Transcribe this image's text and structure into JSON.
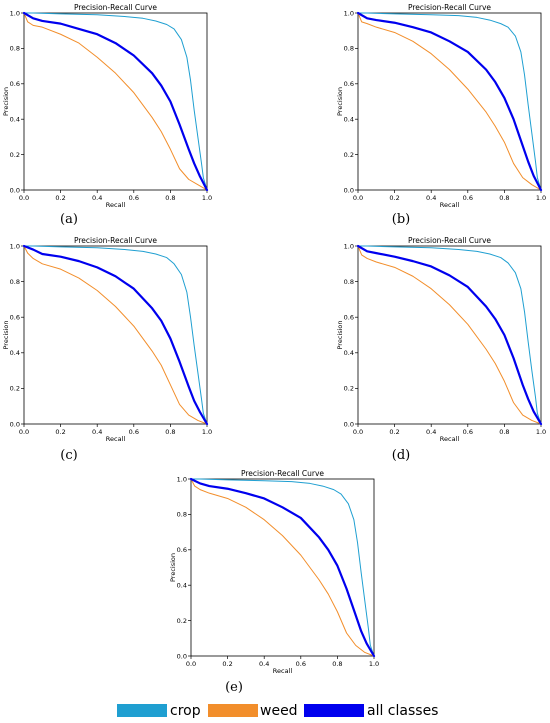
{
  "chart_data": [
    {
      "type": "line",
      "caption": "(a)",
      "title": "Precision-Recall Curve",
      "xlabel": "Recall",
      "ylabel": "Precision",
      "xlim": [
        0,
        1
      ],
      "ylim": [
        0,
        1
      ],
      "xticks": [
        "0.0",
        "0.2",
        "0.4",
        "0.6",
        "0.8",
        "1.0"
      ],
      "yticks": [
        "0.0",
        "0.2",
        "0.4",
        "0.6",
        "0.8",
        "1.0"
      ],
      "series": [
        {
          "name": "crop",
          "color": "#1f9fd1",
          "width": 1,
          "x": [
            0,
            0.05,
            0.2,
            0.4,
            0.55,
            0.65,
            0.72,
            0.78,
            0.82,
            0.86,
            0.89,
            0.91,
            0.93,
            0.95,
            0.97,
            0.98,
            1.0
          ],
          "y": [
            1.0,
            1.0,
            0.995,
            0.99,
            0.98,
            0.97,
            0.955,
            0.935,
            0.91,
            0.85,
            0.75,
            0.62,
            0.45,
            0.3,
            0.15,
            0.07,
            0.0
          ]
        },
        {
          "name": "weed",
          "color": "#f28e2b",
          "width": 1,
          "x": [
            0,
            0.02,
            0.05,
            0.1,
            0.2,
            0.3,
            0.4,
            0.5,
            0.6,
            0.7,
            0.75,
            0.8,
            0.85,
            0.9,
            0.95,
            1.0
          ],
          "y": [
            1.0,
            0.95,
            0.93,
            0.92,
            0.88,
            0.83,
            0.75,
            0.66,
            0.55,
            0.41,
            0.33,
            0.23,
            0.12,
            0.06,
            0.03,
            0.0
          ]
        },
        {
          "name": "all classes",
          "color": "#0000ee",
          "width": 2.2,
          "x": [
            0,
            0.05,
            0.1,
            0.2,
            0.3,
            0.4,
            0.5,
            0.6,
            0.7,
            0.75,
            0.8,
            0.85,
            0.9,
            0.93,
            0.96,
            1.0
          ],
          "y": [
            1.0,
            0.97,
            0.955,
            0.94,
            0.91,
            0.88,
            0.83,
            0.76,
            0.66,
            0.59,
            0.5,
            0.37,
            0.23,
            0.15,
            0.08,
            0.0
          ]
        }
      ]
    },
    {
      "type": "line",
      "caption": "(b)",
      "title": "Precision-Recall Curve",
      "xlabel": "Recall",
      "ylabel": "Precision",
      "xlim": [
        0,
        1
      ],
      "ylim": [
        0,
        1
      ],
      "xticks": [
        "0.0",
        "0.2",
        "0.4",
        "0.6",
        "0.8",
        "1.0"
      ],
      "yticks": [
        "0.0",
        "0.2",
        "0.4",
        "0.6",
        "0.8",
        "1.0"
      ],
      "series": [
        {
          "name": "crop",
          "color": "#1f9fd1",
          "width": 1,
          "x": [
            0,
            0.05,
            0.2,
            0.4,
            0.55,
            0.65,
            0.72,
            0.78,
            0.82,
            0.86,
            0.89,
            0.91,
            0.93,
            0.95,
            0.97,
            0.98,
            1.0
          ],
          "y": [
            1.0,
            1.0,
            0.995,
            0.99,
            0.985,
            0.975,
            0.96,
            0.94,
            0.92,
            0.87,
            0.78,
            0.65,
            0.48,
            0.32,
            0.16,
            0.07,
            0.0
          ]
        },
        {
          "name": "weed",
          "color": "#f28e2b",
          "width": 1,
          "x": [
            0,
            0.02,
            0.05,
            0.1,
            0.2,
            0.3,
            0.4,
            0.5,
            0.6,
            0.7,
            0.75,
            0.8,
            0.85,
            0.9,
            0.95,
            1.0
          ],
          "y": [
            1.0,
            0.95,
            0.94,
            0.92,
            0.89,
            0.84,
            0.77,
            0.68,
            0.57,
            0.44,
            0.36,
            0.27,
            0.15,
            0.07,
            0.03,
            0.0
          ]
        },
        {
          "name": "all classes",
          "color": "#0000ee",
          "width": 2.2,
          "x": [
            0,
            0.05,
            0.1,
            0.2,
            0.3,
            0.4,
            0.5,
            0.6,
            0.7,
            0.75,
            0.8,
            0.85,
            0.9,
            0.93,
            0.96,
            1.0
          ],
          "y": [
            1.0,
            0.97,
            0.96,
            0.945,
            0.92,
            0.89,
            0.84,
            0.78,
            0.68,
            0.61,
            0.52,
            0.4,
            0.25,
            0.16,
            0.08,
            0.0
          ]
        }
      ]
    },
    {
      "type": "line",
      "caption": "(c)",
      "title": "Precision-Recall Curve",
      "xlabel": "Recall",
      "ylabel": "Precision",
      "xlim": [
        0,
        1
      ],
      "ylim": [
        0,
        1
      ],
      "xticks": [
        "0.0",
        "0.2",
        "0.4",
        "0.6",
        "0.8",
        "1.0"
      ],
      "yticks": [
        "0.0",
        "0.2",
        "0.4",
        "0.6",
        "0.8",
        "1.0"
      ],
      "series": [
        {
          "name": "crop",
          "color": "#1f9fd1",
          "width": 1,
          "x": [
            0,
            0.05,
            0.2,
            0.4,
            0.55,
            0.65,
            0.72,
            0.78,
            0.82,
            0.86,
            0.89,
            0.91,
            0.93,
            0.95,
            0.97,
            0.98,
            1.0
          ],
          "y": [
            1.0,
            1.0,
            0.995,
            0.99,
            0.98,
            0.97,
            0.955,
            0.935,
            0.9,
            0.84,
            0.74,
            0.6,
            0.44,
            0.29,
            0.14,
            0.06,
            0.0
          ]
        },
        {
          "name": "weed",
          "color": "#f28e2b",
          "width": 1,
          "x": [
            0,
            0.02,
            0.05,
            0.1,
            0.2,
            0.3,
            0.4,
            0.5,
            0.6,
            0.7,
            0.75,
            0.8,
            0.85,
            0.9,
            0.95,
            1.0
          ],
          "y": [
            1.0,
            0.96,
            0.93,
            0.9,
            0.87,
            0.82,
            0.75,
            0.66,
            0.55,
            0.41,
            0.33,
            0.22,
            0.11,
            0.05,
            0.02,
            0.0
          ]
        },
        {
          "name": "all classes",
          "color": "#0000ee",
          "width": 2.2,
          "x": [
            0,
            0.05,
            0.1,
            0.2,
            0.3,
            0.4,
            0.5,
            0.6,
            0.7,
            0.75,
            0.8,
            0.85,
            0.9,
            0.93,
            0.96,
            1.0
          ],
          "y": [
            1.0,
            0.98,
            0.955,
            0.94,
            0.915,
            0.88,
            0.83,
            0.76,
            0.65,
            0.58,
            0.48,
            0.35,
            0.21,
            0.13,
            0.07,
            0.0
          ]
        }
      ]
    },
    {
      "type": "line",
      "caption": "(d)",
      "title": "Precision-Recall Curve",
      "xlabel": "Recall",
      "ylabel": "Precision",
      "xlim": [
        0,
        1
      ],
      "ylim": [
        0,
        1
      ],
      "xticks": [
        "0.0",
        "0.2",
        "0.4",
        "0.6",
        "0.8",
        "1.0"
      ],
      "yticks": [
        "0.0",
        "0.2",
        "0.4",
        "0.6",
        "0.8",
        "1.0"
      ],
      "series": [
        {
          "name": "crop",
          "color": "#1f9fd1",
          "width": 1,
          "x": [
            0,
            0.05,
            0.2,
            0.4,
            0.55,
            0.65,
            0.72,
            0.78,
            0.82,
            0.86,
            0.89,
            0.91,
            0.93,
            0.95,
            0.97,
            0.98,
            1.0
          ],
          "y": [
            1.0,
            1.0,
            0.995,
            0.99,
            0.98,
            0.97,
            0.955,
            0.935,
            0.905,
            0.85,
            0.76,
            0.63,
            0.46,
            0.3,
            0.15,
            0.06,
            0.0
          ]
        },
        {
          "name": "weed",
          "color": "#f28e2b",
          "width": 1,
          "x": [
            0,
            0.02,
            0.05,
            0.1,
            0.2,
            0.3,
            0.4,
            0.5,
            0.6,
            0.7,
            0.75,
            0.8,
            0.85,
            0.9,
            0.95,
            1.0
          ],
          "y": [
            1.0,
            0.95,
            0.93,
            0.91,
            0.88,
            0.83,
            0.76,
            0.67,
            0.56,
            0.42,
            0.34,
            0.24,
            0.12,
            0.05,
            0.02,
            0.0
          ]
        },
        {
          "name": "all classes",
          "color": "#0000ee",
          "width": 2.2,
          "x": [
            0,
            0.05,
            0.1,
            0.2,
            0.3,
            0.4,
            0.5,
            0.6,
            0.7,
            0.75,
            0.8,
            0.85,
            0.9,
            0.93,
            0.96,
            1.0
          ],
          "y": [
            1.0,
            0.97,
            0.96,
            0.94,
            0.915,
            0.885,
            0.835,
            0.77,
            0.66,
            0.59,
            0.5,
            0.37,
            0.22,
            0.14,
            0.07,
            0.0
          ]
        }
      ]
    },
    {
      "type": "line",
      "caption": "(e)",
      "title": "Precision-Recall Curve",
      "xlabel": "Recall",
      "ylabel": "Precision",
      "xlim": [
        0,
        1
      ],
      "ylim": [
        0,
        1
      ],
      "xticks": [
        "0.0",
        "0.2",
        "0.4",
        "0.6",
        "0.8",
        "1.0"
      ],
      "yticks": [
        "0.0",
        "0.2",
        "0.4",
        "0.6",
        "0.8",
        "1.0"
      ],
      "series": [
        {
          "name": "crop",
          "color": "#1f9fd1",
          "width": 1,
          "x": [
            0,
            0.05,
            0.2,
            0.4,
            0.55,
            0.65,
            0.72,
            0.78,
            0.82,
            0.86,
            0.89,
            0.91,
            0.93,
            0.95,
            0.97,
            0.98,
            1.0
          ],
          "y": [
            1.0,
            1.0,
            0.995,
            0.99,
            0.985,
            0.975,
            0.96,
            0.94,
            0.915,
            0.86,
            0.77,
            0.64,
            0.47,
            0.31,
            0.15,
            0.06,
            0.0
          ]
        },
        {
          "name": "weed",
          "color": "#f28e2b",
          "width": 1,
          "x": [
            0,
            0.02,
            0.05,
            0.1,
            0.2,
            0.3,
            0.4,
            0.5,
            0.6,
            0.7,
            0.75,
            0.8,
            0.85,
            0.9,
            0.95,
            1.0
          ],
          "y": [
            1.0,
            0.96,
            0.94,
            0.92,
            0.89,
            0.84,
            0.77,
            0.68,
            0.57,
            0.43,
            0.35,
            0.25,
            0.13,
            0.06,
            0.02,
            0.0
          ]
        },
        {
          "name": "all classes",
          "color": "#0000ee",
          "width": 2.2,
          "x": [
            0,
            0.05,
            0.1,
            0.2,
            0.3,
            0.4,
            0.5,
            0.6,
            0.7,
            0.75,
            0.8,
            0.85,
            0.9,
            0.93,
            0.96,
            1.0
          ],
          "y": [
            1.0,
            0.975,
            0.96,
            0.945,
            0.92,
            0.89,
            0.84,
            0.78,
            0.67,
            0.6,
            0.51,
            0.38,
            0.23,
            0.14,
            0.07,
            0.0
          ]
        }
      ]
    }
  ],
  "legend": {
    "items": [
      {
        "label": "crop",
        "color": "#1f9fd1"
      },
      {
        "label": "weed",
        "color": "#f28e2b"
      },
      {
        "label": "all classes",
        "color": "#0000ee"
      }
    ]
  }
}
